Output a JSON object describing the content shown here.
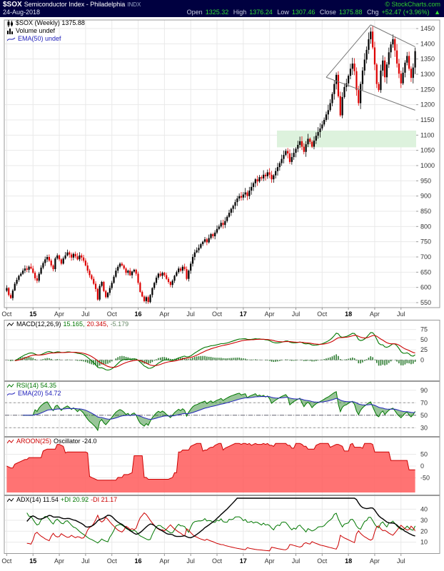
{
  "header": {
    "symbol": "$SOX",
    "title": "Semiconductor Index - Philadelphia",
    "exchange": "INDX",
    "copyright": "© StockCharts.com",
    "date": "24-Aug-2018",
    "quote": {
      "open_l": "Open",
      "open_v": "1325.32",
      "high_l": "High",
      "high_v": "1376.24",
      "low_l": "Low",
      "low_v": "1307.46",
      "close_l": "Close",
      "close_v": "1375.88",
      "chg_l": "Chg",
      "chg_v": "+52.47 (+3.96%)",
      "arrow": "▲"
    }
  },
  "main_panel": {
    "symbol_text": "$SOX (Weekly) 1375.88",
    "volume_text": "Volume undef",
    "ema_text": "EMA(50) undef"
  },
  "colors": {
    "header_bg": "#000040",
    "header_green": "#2ecc2e",
    "up": "#000000",
    "down": "#dd0000",
    "grid": "#e9e9e9",
    "frame": "#999999",
    "axis_text": "#333333",
    "macd_line": "#007700",
    "macd_signal": "#cc0000",
    "macd_hist": "#2e7d32",
    "rsi_line": "#007700",
    "rsi_fill": "rgba(0,110,0,0.40)",
    "rsi_ema": "#2222bb",
    "aroon_fill": "#ff5a5a",
    "aroon_line": "#cc0000",
    "adx_line": "#000000",
    "plus_di": "#007700",
    "minus_di": "#cc0000",
    "support_zone": "#ddf2dd",
    "trendline": "#777777"
  },
  "chart_data": {
    "type": "candlestick",
    "timeframe": "weekly",
    "title": "$SOX (Weekly)",
    "last_close": 1375.88,
    "x_ticks": {
      "indices": [
        0,
        13,
        26,
        39,
        52,
        65,
        78,
        91,
        104,
        117,
        130,
        143,
        156,
        169,
        182,
        195
      ],
      "labels": [
        "Oct",
        "15",
        "Apr",
        "Jul",
        "Oct",
        "16",
        "Apr",
        "Jul",
        "Oct",
        "17",
        "Apr",
        "Jul",
        "Oct",
        "18",
        "Apr",
        "Jul"
      ],
      "years": [
        false,
        true,
        false,
        false,
        false,
        true,
        false,
        false,
        false,
        true,
        false,
        false,
        false,
        true,
        false,
        false
      ]
    },
    "price_axis": {
      "min": 550,
      "max": 1450,
      "ticks": [
        1450,
        1400,
        1350,
        1300,
        1250,
        1200,
        1150,
        1100,
        1050,
        1000,
        950,
        900,
        850,
        800,
        750,
        700,
        650,
        600,
        550
      ]
    },
    "closes": [
      598,
      575,
      565,
      590,
      612,
      625,
      638,
      645,
      655,
      662,
      658,
      668,
      662,
      648,
      630,
      622,
      645,
      665,
      680,
      692,
      700,
      688,
      672,
      660,
      695,
      705,
      692,
      678,
      695,
      705,
      715,
      708,
      698,
      710,
      702,
      692,
      705,
      698,
      688,
      672,
      655,
      640,
      628,
      612,
      595,
      560,
      605,
      618,
      588,
      568,
      582,
      598,
      615,
      635,
      655,
      668,
      678,
      672,
      662,
      648,
      655,
      640,
      652,
      658,
      645,
      615,
      585,
      570,
      555,
      568,
      552,
      575,
      598,
      615,
      632,
      645,
      638,
      648,
      640,
      628,
      618,
      608,
      622,
      638,
      650,
      662,
      655,
      668,
      660,
      628,
      655,
      678,
      700,
      715,
      722,
      730,
      742,
      750,
      758,
      748,
      762,
      775,
      768,
      780,
      792,
      800,
      812,
      805,
      818,
      832,
      845,
      858,
      868,
      880,
      892,
      900,
      895,
      905,
      912,
      900,
      918,
      930,
      942,
      955,
      948,
      962,
      958,
      970,
      965,
      978,
      970,
      955,
      968,
      982,
      995,
      1008,
      1022,
      1035,
      1048,
      1040,
      1012,
      1028,
      1042,
      1055,
      1068,
      1080,
      1062,
      1045,
      1070,
      1088,
      1078,
      1062,
      1082,
      1098,
      1110,
      1122,
      1135,
      1150,
      1168,
      1182,
      1205,
      1235,
      1268,
      1298,
      1228,
      1165,
      1225,
      1258,
      1270,
      1295,
      1318,
      1335,
      1310,
      1248,
      1205,
      1268,
      1312,
      1348,
      1380,
      1415,
      1440,
      1388,
      1332,
      1268,
      1248,
      1312,
      1345,
      1290,
      1332,
      1372,
      1398,
      1415,
      1378,
      1335,
      1302,
      1270,
      1305,
      1338,
      1360,
      1318,
      1288,
      1322,
      1375.88
    ],
    "annotations": {
      "support_zone": {
        "start_index": 134,
        "end_index": 202,
        "price_low": 1060,
        "price_high": 1115
      },
      "trendlines": [
        [
          158,
          1290,
          180,
          1462
        ],
        [
          180,
          1462,
          202,
          1390
        ],
        [
          158,
          1290,
          202,
          1182
        ]
      ]
    },
    "panels": {
      "macd": {
        "label": "MACD(12,26,9)",
        "v1": "15.165,",
        "v2": "20.345,",
        "v3": "-5.179",
        "values": [
          15.165,
          20.345,
          -5.179
        ],
        "axis_ticks": [
          75,
          50,
          25,
          0
        ],
        "range": [
          -45,
          92
        ]
      },
      "rsi": {
        "line1": "RSI(14) 54.35",
        "line2": "EMA(20) 54.72",
        "rsi_value": 54.35,
        "ema_value": 54.72,
        "axis_ticks": [
          90,
          70,
          50,
          30
        ],
        "guides": [
          70,
          50,
          30
        ],
        "range": [
          20,
          100
        ]
      },
      "aroon": {
        "name": "AROON(25)",
        "osc_text": "Oscillator -24.0",
        "osc_value": -24.0,
        "axis_ticks": [
          50,
          0,
          -50
        ],
        "range": [
          -112,
          112
        ]
      },
      "adx": {
        "v_adx": "ADX(14) 11.54",
        "v_pdi": "+DI 20.92",
        "v_mdi": "-DI 21.17",
        "adx_value": 11.54,
        "plus_di": 20.92,
        "minus_di": 21.17,
        "axis_ticks": [
          40,
          30,
          20,
          10
        ],
        "range": [
          2,
          50
        ]
      }
    }
  }
}
